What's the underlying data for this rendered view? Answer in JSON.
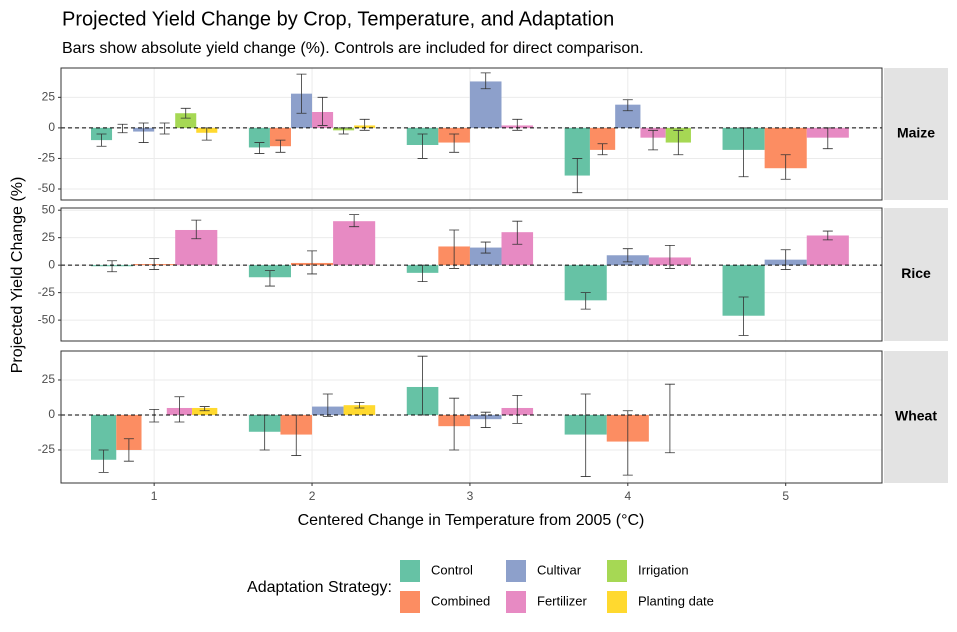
{
  "chart_data": {
    "type": "bar",
    "title": "Projected Yield Change by Crop, Temperature, and Adaptation",
    "subtitle": "Bars show absolute yield change (%). Controls are included for direct comparison.",
    "xlabel": "Centered Change in Temperature from 2005 (°C)",
    "ylabel": "Projected Yield Change (%)",
    "legend_title": "Adaptation Strategy:",
    "legend_position": "bottom",
    "grid": true,
    "x": [
      1,
      2,
      3,
      4,
      5
    ],
    "xlim": [
      0.41,
      5.61
    ],
    "xticks": [
      1,
      2,
      3,
      4,
      5
    ],
    "series": [
      {
        "name": "Control",
        "color": "#66c2a5"
      },
      {
        "name": "Combined",
        "color": "#fc8d62"
      },
      {
        "name": "Cultivar",
        "color": "#8da0cb"
      },
      {
        "name": "Fertilizer",
        "color": "#e78ac3"
      },
      {
        "name": "Irrigation",
        "color": "#a6d854"
      },
      {
        "name": "Planting date",
        "color": "#ffd92f"
      }
    ],
    "panels": [
      {
        "label": "Maize",
        "ylim": [
          -59,
          49
        ],
        "yticks": [
          -50,
          -25,
          0,
          25
        ],
        "series": [
          {
            "values": [
              -10,
              -16,
              -14,
              -39,
              -18
            ],
            "lower": [
              -15,
              -21,
              -25,
              -53,
              -40
            ],
            "upper": [
              -5,
              -12,
              -5,
              -25,
              0
            ]
          },
          {
            "values": [
              0,
              -15,
              -12,
              -18,
              -33
            ],
            "lower": [
              -4,
              -20,
              -20,
              -22,
              -42
            ],
            "upper": [
              3,
              -10,
              -5,
              -13,
              -22
            ]
          },
          {
            "values": [
              -3,
              28,
              38,
              19,
              null
            ],
            "lower": [
              -12,
              12,
              32,
              14,
              null
            ],
            "upper": [
              4,
              44,
              45,
              23,
              null
            ]
          },
          {
            "values": [
              0,
              13,
              2,
              -8,
              -8
            ],
            "lower": [
              -5,
              2,
              -2,
              -18,
              -17
            ],
            "upper": [
              4,
              25,
              7,
              -2,
              0
            ]
          },
          {
            "values": [
              12,
              -2,
              null,
              -12,
              null
            ],
            "lower": [
              8,
              -5,
              null,
              -22,
              null
            ],
            "upper": [
              16,
              0,
              null,
              -2,
              null
            ]
          },
          {
            "values": [
              -4,
              2,
              null,
              null,
              null
            ],
            "lower": [
              -10,
              -2,
              null,
              null,
              null
            ],
            "upper": [
              0,
              7,
              null,
              null,
              null
            ]
          }
        ]
      },
      {
        "label": "Rice",
        "ylim": [
          -69,
          52
        ],
        "yticks": [
          -50,
          -25,
          0,
          25,
          50
        ],
        "series": [
          {
            "values": [
              -1,
              -11,
              -7,
              -32,
              -46
            ],
            "lower": [
              -6,
              -19,
              -15,
              -40,
              -64
            ],
            "upper": [
              4,
              -5,
              0,
              -25,
              -29
            ]
          },
          {
            "values": [
              1,
              2,
              17,
              null,
              null
            ],
            "lower": [
              -4,
              -8,
              -3,
              null,
              null
            ],
            "upper": [
              6,
              13,
              32,
              null,
              null
            ]
          },
          {
            "values": [
              null,
              null,
              16,
              9,
              5
            ],
            "lower": [
              null,
              null,
              11,
              3,
              -4
            ],
            "upper": [
              null,
              null,
              21,
              15,
              14
            ]
          },
          {
            "values": [
              32,
              40,
              30,
              7,
              27
            ],
            "lower": [
              24,
              35,
              19,
              -3,
              23
            ],
            "upper": [
              41,
              46,
              40,
              18,
              31
            ]
          },
          {
            "values": [
              null,
              null,
              null,
              null,
              null
            ],
            "lower": [
              null,
              null,
              null,
              null,
              null
            ],
            "upper": [
              null,
              null,
              null,
              null,
              null
            ]
          },
          {
            "values": [
              null,
              null,
              null,
              null,
              null
            ],
            "lower": [
              null,
              null,
              null,
              null,
              null
            ],
            "upper": [
              null,
              null,
              null,
              null,
              null
            ]
          }
        ]
      },
      {
        "label": "Wheat",
        "ylim": [
          -48.6,
          45.7
        ],
        "yticks": [
          -25,
          0,
          25
        ],
        "series": [
          {
            "values": [
              -32,
              -12,
              20,
              -14,
              null
            ],
            "lower": [
              -41,
              -25,
              0,
              -44,
              null
            ],
            "upper": [
              -25,
              0,
              42,
              15,
              null
            ]
          },
          {
            "values": [
              -25,
              -14,
              -8,
              -19,
              null
            ],
            "lower": [
              -33,
              -29,
              -25,
              -43,
              null
            ],
            "upper": [
              -17,
              0,
              12,
              3,
              null
            ]
          },
          {
            "values": [
              0,
              6,
              -3,
              0,
              null
            ],
            "lower": [
              -5,
              -1,
              -9,
              -27,
              null
            ],
            "upper": [
              4,
              15,
              2,
              22,
              null
            ]
          },
          {
            "values": [
              5,
              null,
              5,
              null,
              null
            ],
            "lower": [
              -5,
              null,
              -6,
              null,
              null
            ],
            "upper": [
              13,
              null,
              14,
              null,
              null
            ]
          },
          {
            "values": [
              null,
              null,
              null,
              null,
              null
            ],
            "lower": [
              null,
              null,
              null,
              null,
              null
            ],
            "upper": [
              null,
              null,
              null,
              null,
              null
            ]
          },
          {
            "values": [
              5,
              7,
              null,
              null,
              null
            ],
            "lower": [
              3,
              5,
              null,
              null,
              null
            ],
            "upper": [
              6,
              9,
              null,
              null,
              null
            ]
          }
        ]
      }
    ]
  }
}
